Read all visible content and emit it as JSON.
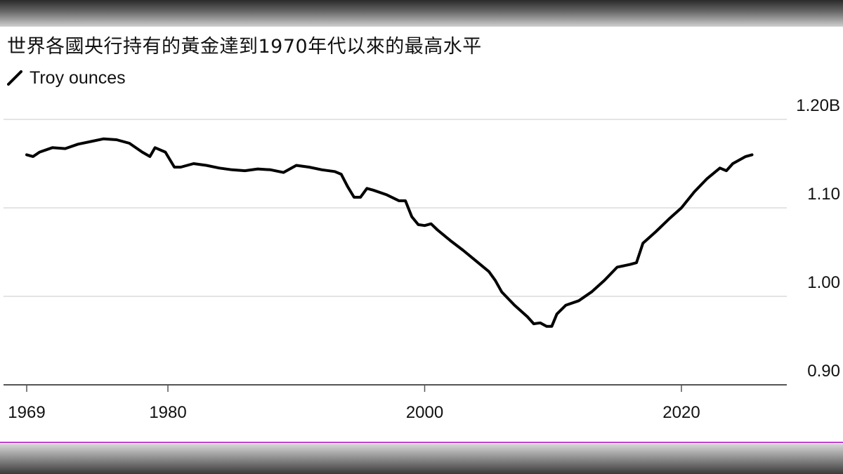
{
  "chart_data": {
    "type": "line",
    "title": "世界各國央行持有的黃金達到1970年代以來的最高水平",
    "series": [
      {
        "name": "Troy ounces",
        "color": "#000000",
        "points": [
          [
            1969.0,
            1.16
          ],
          [
            1969.5,
            1.158
          ],
          [
            1970.0,
            1.163
          ],
          [
            1971.0,
            1.168
          ],
          [
            1972.0,
            1.167
          ],
          [
            1973.0,
            1.172
          ],
          [
            1974.0,
            1.175
          ],
          [
            1975.0,
            1.178
          ],
          [
            1976.0,
            1.177
          ],
          [
            1977.0,
            1.173
          ],
          [
            1978.0,
            1.163
          ],
          [
            1978.6,
            1.158
          ],
          [
            1979.0,
            1.168
          ],
          [
            1979.8,
            1.163
          ],
          [
            1980.5,
            1.146
          ],
          [
            1981.0,
            1.146
          ],
          [
            1982.0,
            1.15
          ],
          [
            1983.0,
            1.148
          ],
          [
            1984.0,
            1.145
          ],
          [
            1985.0,
            1.143
          ],
          [
            1986.0,
            1.142
          ],
          [
            1987.0,
            1.144
          ],
          [
            1988.0,
            1.143
          ],
          [
            1989.0,
            1.14
          ],
          [
            1990.0,
            1.148
          ],
          [
            1991.0,
            1.146
          ],
          [
            1992.0,
            1.143
          ],
          [
            1993.0,
            1.141
          ],
          [
            1993.5,
            1.138
          ],
          [
            1994.0,
            1.124
          ],
          [
            1994.5,
            1.112
          ],
          [
            1995.0,
            1.112
          ],
          [
            1995.5,
            1.122
          ],
          [
            1996.0,
            1.12
          ],
          [
            1997.0,
            1.115
          ],
          [
            1998.0,
            1.108
          ],
          [
            1998.5,
            1.108
          ],
          [
            1999.0,
            1.09
          ],
          [
            1999.5,
            1.081
          ],
          [
            2000.0,
            1.08
          ],
          [
            2000.5,
            1.082
          ],
          [
            2001.0,
            1.075
          ],
          [
            2002.0,
            1.063
          ],
          [
            2003.0,
            1.052
          ],
          [
            2004.0,
            1.04
          ],
          [
            2005.0,
            1.028
          ],
          [
            2005.5,
            1.018
          ],
          [
            2006.0,
            1.005
          ],
          [
            2007.0,
            0.99
          ],
          [
            2008.0,
            0.977
          ],
          [
            2008.5,
            0.969
          ],
          [
            2009.0,
            0.97
          ],
          [
            2009.5,
            0.966
          ],
          [
            2009.9,
            0.966
          ],
          [
            2010.3,
            0.98
          ],
          [
            2011.0,
            0.99
          ],
          [
            2012.0,
            0.995
          ],
          [
            2013.0,
            1.005
          ],
          [
            2014.0,
            1.018
          ],
          [
            2015.0,
            1.033
          ],
          [
            2016.0,
            1.036
          ],
          [
            2016.5,
            1.038
          ],
          [
            2017.0,
            1.06
          ],
          [
            2018.0,
            1.073
          ],
          [
            2019.0,
            1.087
          ],
          [
            2020.0,
            1.1
          ],
          [
            2021.0,
            1.118
          ],
          [
            2022.0,
            1.133
          ],
          [
            2023.0,
            1.145
          ],
          [
            2023.5,
            1.142
          ],
          [
            2024.0,
            1.15
          ],
          [
            2025.0,
            1.158
          ],
          [
            2025.5,
            1.16
          ]
        ]
      }
    ],
    "x_ticks": [
      {
        "value": 1969,
        "label": "1969"
      },
      {
        "value": 1980,
        "label": "1980"
      },
      {
        "value": 2000,
        "label": "2000"
      },
      {
        "value": 2020,
        "label": "2020"
      }
    ],
    "y_ticks": [
      {
        "value": 1.2,
        "label": "1.20B"
      },
      {
        "value": 1.1,
        "label": "1.10"
      },
      {
        "value": 1.0,
        "label": "1.00"
      },
      {
        "value": 0.9,
        "label": "0.90"
      }
    ],
    "xlim": [
      1969,
      2025.5
    ],
    "ylim": [
      0.9,
      1.2
    ],
    "grid": true,
    "legend_position": "top-left"
  }
}
